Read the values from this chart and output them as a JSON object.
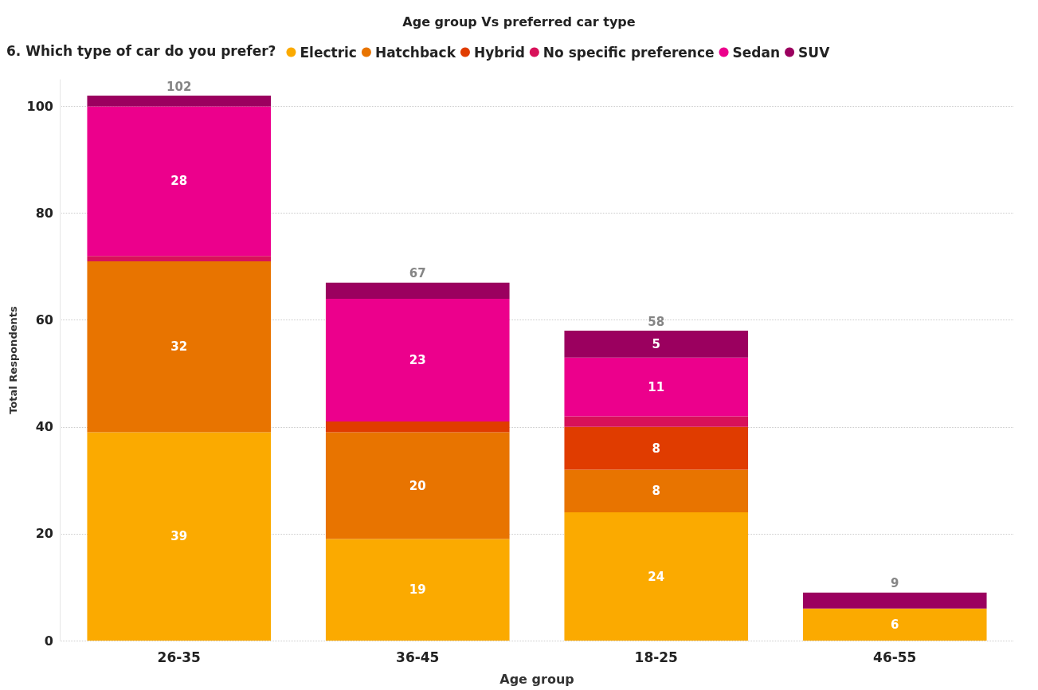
{
  "chart_data": {
    "type": "bar",
    "title": "Age group Vs preferred car type",
    "legend_title": "6. Which type of car do you prefer?",
    "xlabel": "Age group",
    "ylabel": "Total Respondents",
    "categories": [
      "26-35",
      "36-45",
      "18-25",
      "46-55"
    ],
    "stacked": true,
    "series": [
      {
        "name": "Electric",
        "color": "#fbaa00",
        "values": [
          39,
          19,
          24,
          6
        ],
        "value_labels": [
          "39",
          "19",
          "24",
          "6"
        ]
      },
      {
        "name": "Hatchback",
        "color": "#e87400",
        "values": [
          32,
          20,
          8,
          null
        ],
        "value_labels": [
          "32",
          "20",
          "8",
          null
        ]
      },
      {
        "name": "Hybrid",
        "color": "#e03c00",
        "values": [
          null,
          2,
          8,
          null
        ],
        "value_labels": [
          null,
          null,
          "8",
          null
        ]
      },
      {
        "name": "No specific preference",
        "color": "#d8115a",
        "values": [
          1,
          null,
          2,
          null
        ],
        "value_labels": [
          null,
          null,
          null,
          null
        ]
      },
      {
        "name": "Sedan",
        "color": "#ec008c",
        "values": [
          28,
          23,
          11,
          null
        ],
        "value_labels": [
          "28",
          "23",
          "11",
          null
        ]
      },
      {
        "name": "SUV",
        "color": "#9b005f",
        "values": [
          2,
          3,
          5,
          3
        ],
        "value_labels": [
          null,
          null,
          "5",
          null
        ]
      }
    ],
    "totals": [
      "102",
      "67",
      "58",
      "9"
    ],
    "ylim": [
      0,
      105
    ],
    "yticks": [
      0,
      20,
      40,
      60,
      80,
      100
    ],
    "grid": "y",
    "legend": "top left"
  }
}
